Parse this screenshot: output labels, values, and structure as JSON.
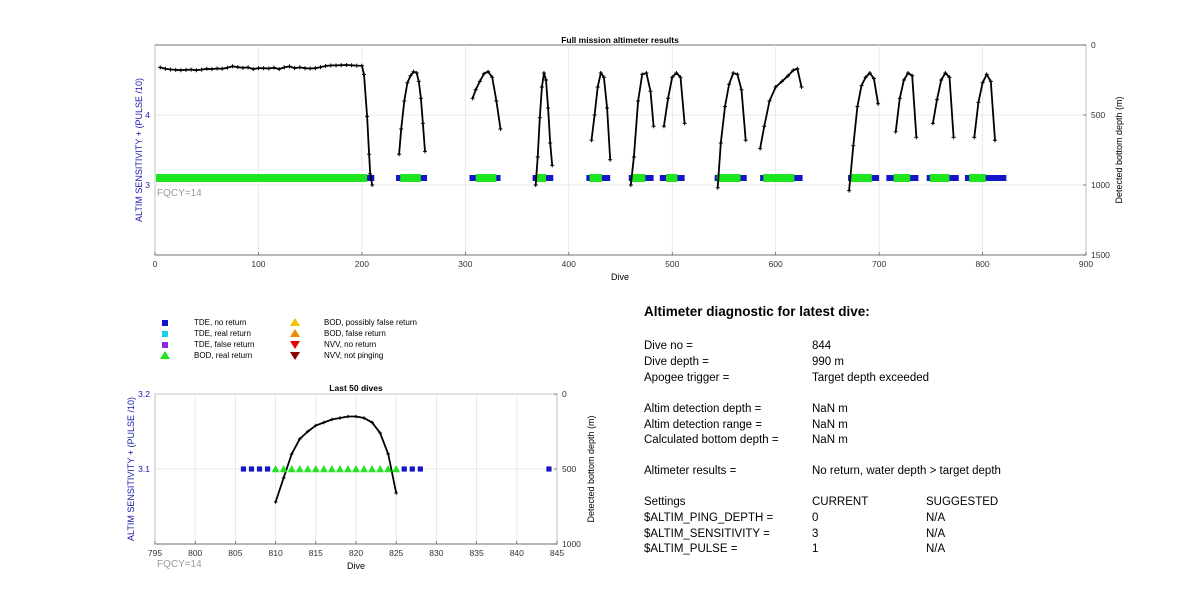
{
  "chart_data": [
    {
      "type": "scatter",
      "title": "Full mission altimeter results",
      "xlabel": "Dive",
      "ylabel": "ALTIM SENSITIVITY + (PULSE /10)",
      "ylabel_right": "Detected bottom depth (m)",
      "annotation": "FQCY=14",
      "xlim": [
        0,
        900
      ],
      "ylim": [
        2,
        5
      ],
      "ylim_right": [
        0,
        1500
      ],
      "right_axis_reversed": true,
      "grid": true,
      "xticks": [
        "0",
        "100",
        "200",
        "300",
        "400",
        "500",
        "600",
        "700",
        "800",
        "900"
      ],
      "yticks": [
        "3",
        "4"
      ],
      "yticks_right": [
        "0",
        "500",
        "1000",
        "1500"
      ],
      "tde_segments": [
        [
          1,
          212
        ],
        [
          233,
          263
        ],
        [
          304,
          334
        ],
        [
          365,
          385
        ],
        [
          417,
          440
        ],
        [
          458,
          482
        ],
        [
          488,
          512
        ],
        [
          541,
          572
        ],
        [
          585,
          626
        ],
        [
          670,
          700
        ],
        [
          707,
          738
        ],
        [
          746,
          777
        ],
        [
          783,
          823
        ]
      ],
      "bod_segments": [
        [
          1,
          205
        ],
        [
          237,
          257
        ],
        [
          310,
          330
        ],
        [
          368,
          378
        ],
        [
          420,
          432
        ],
        [
          460,
          474
        ],
        [
          494,
          505
        ],
        [
          543,
          566
        ],
        [
          588,
          618
        ],
        [
          673,
          693
        ],
        [
          714,
          730
        ],
        [
          749,
          768
        ],
        [
          787,
          803
        ]
      ],
      "sensitivity_value": 3.1,
      "bottom_depth_series": [
        {
          "x": [
            5,
            10,
            15,
            20,
            25,
            30,
            35,
            40,
            45,
            50,
            55,
            60,
            65,
            70,
            75,
            80,
            85,
            90,
            95,
            100,
            105,
            110,
            115,
            120,
            125,
            130,
            135,
            140,
            145,
            150,
            155,
            160,
            165,
            170,
            175,
            180,
            185,
            190,
            195,
            200,
            202,
            205,
            207,
            208,
            210
          ],
          "y": [
            160,
            170,
            175,
            178,
            180,
            178,
            176,
            180,
            176,
            170,
            172,
            168,
            170,
            162,
            152,
            158,
            163,
            160,
            172,
            165,
            166,
            168,
            162,
            172,
            160,
            153,
            165,
            160,
            166,
            168,
            166,
            158,
            150,
            146,
            146,
            144,
            143,
            145,
            147,
            148,
            210,
            510,
            780,
            920,
            1000
          ]
        },
        {
          "x": [
            236,
            238,
            241,
            244,
            247,
            250,
            253,
            255,
            257,
            259,
            261
          ],
          "y": [
            780,
            600,
            400,
            270,
            220,
            190,
            200,
            260,
            380,
            560,
            760
          ]
        },
        {
          "x": [
            307,
            310,
            314,
            318,
            322,
            326,
            330,
            334
          ],
          "y": [
            380,
            320,
            260,
            205,
            190,
            230,
            400,
            600
          ]
        },
        {
          "x": [
            368,
            370,
            372,
            374,
            376,
            378,
            380,
            382,
            384
          ],
          "y": [
            1000,
            800,
            520,
            300,
            200,
            250,
            450,
            700,
            860
          ]
        },
        {
          "x": [
            422,
            425,
            428,
            431,
            434,
            437,
            440
          ],
          "y": [
            680,
            500,
            300,
            200,
            230,
            450,
            820
          ]
        },
        {
          "x": [
            460,
            463,
            467,
            471,
            475,
            479,
            482
          ],
          "y": [
            1000,
            800,
            400,
            210,
            200,
            330,
            580
          ]
        },
        {
          "x": [
            492,
            496,
            500,
            504,
            508,
            512
          ],
          "y": [
            580,
            380,
            230,
            200,
            230,
            560
          ]
        },
        {
          "x": [
            544,
            547,
            551,
            555,
            559,
            563,
            567,
            571
          ],
          "y": [
            1020,
            700,
            440,
            280,
            200,
            210,
            320,
            680
          ]
        },
        {
          "x": [
            585,
            589,
            594,
            600,
            606,
            612,
            617,
            621,
            625
          ],
          "y": [
            740,
            580,
            400,
            300,
            260,
            220,
            180,
            170,
            300
          ]
        },
        {
          "x": [
            671,
            675,
            679,
            683,
            687,
            691,
            695,
            699
          ],
          "y": [
            1040,
            720,
            440,
            290,
            230,
            200,
            240,
            420
          ]
        },
        {
          "x": [
            716,
            720,
            724,
            728,
            732,
            736
          ],
          "y": [
            620,
            380,
            250,
            200,
            220,
            660
          ]
        },
        {
          "x": [
            752,
            756,
            760,
            764,
            768,
            772
          ],
          "y": [
            560,
            390,
            250,
            200,
            230,
            660
          ]
        },
        {
          "x": [
            792,
            796,
            800,
            804,
            808,
            812
          ],
          "y": [
            660,
            410,
            270,
            210,
            260,
            680
          ]
        }
      ]
    },
    {
      "type": "scatter",
      "title": "Last 50 dives",
      "xlabel": "Dive",
      "ylabel": "ALTIM SENSITIVITY + (PULSE /10)",
      "ylabel_right": "Detected bottom depth (m)",
      "annotation": "FQCY=14",
      "xlim": [
        795,
        845
      ],
      "ylim": [
        3,
        3.2
      ],
      "ylim_right": [
        0,
        1000
      ],
      "right_axis_reversed": true,
      "grid": true,
      "xticks": [
        "795",
        "800",
        "805",
        "810",
        "815",
        "820",
        "825",
        "830",
        "835",
        "840",
        "845"
      ],
      "yticks": [
        "3.1",
        "3.2"
      ],
      "yticks_right": [
        "0",
        "500",
        "1000"
      ],
      "tde_points": [
        {
          "x": 806,
          "y": 3.1
        },
        {
          "x": 807,
          "y": 3.1
        },
        {
          "x": 808,
          "y": 3.1
        },
        {
          "x": 809,
          "y": 3.1
        },
        {
          "x": 826,
          "y": 3.1
        },
        {
          "x": 827,
          "y": 3.1
        },
        {
          "x": 828,
          "y": 3.1
        },
        {
          "x": 844,
          "y": 3.1
        }
      ],
      "bod_points": [
        {
          "x": 810,
          "y": 3.1
        },
        {
          "x": 811,
          "y": 3.1
        },
        {
          "x": 812,
          "y": 3.1
        },
        {
          "x": 813,
          "y": 3.1
        },
        {
          "x": 814,
          "y": 3.1
        },
        {
          "x": 815,
          "y": 3.1
        },
        {
          "x": 816,
          "y": 3.1
        },
        {
          "x": 817,
          "y": 3.1
        },
        {
          "x": 818,
          "y": 3.1
        },
        {
          "x": 819,
          "y": 3.1
        },
        {
          "x": 820,
          "y": 3.1
        },
        {
          "x": 821,
          "y": 3.1
        },
        {
          "x": 822,
          "y": 3.1
        },
        {
          "x": 823,
          "y": 3.1
        },
        {
          "x": 824,
          "y": 3.1
        },
        {
          "x": 825,
          "y": 3.1
        }
      ],
      "bottom_depth": {
        "x": [
          810,
          811,
          812,
          813,
          814,
          815,
          816,
          817,
          818,
          819,
          820,
          821,
          822,
          823,
          824,
          825
        ],
        "y": [
          720,
          560,
          400,
          300,
          250,
          210,
          190,
          170,
          160,
          150,
          150,
          160,
          190,
          260,
          400,
          660
        ]
      }
    }
  ],
  "legend": {
    "items": [
      {
        "label": "TDE, no return",
        "marker": "square",
        "color": "#1414c8"
      },
      {
        "label": "TDE, real return",
        "marker": "square",
        "color": "#19d3e6"
      },
      {
        "label": "TDE, false return",
        "marker": "square",
        "color": "#8a2be2"
      },
      {
        "label": "BOD, real return",
        "marker": "triangle-up",
        "color": "#1ee61e"
      },
      {
        "label": "BOD, possibly false return",
        "marker": "triangle-up",
        "color": "#f5c400"
      },
      {
        "label": "BOD, false return",
        "marker": "triangle-up",
        "color": "#f08c00"
      },
      {
        "label": "NVV, no return",
        "marker": "triangle-down",
        "color": "#e60000"
      },
      {
        "label": "NVV, not pinging",
        "marker": "triangle-down",
        "color": "#8b0000"
      }
    ]
  },
  "diagnostic": {
    "title": "Altimeter diagnostic for latest dive:",
    "dive_no_label": "Dive no =",
    "dive_no": "844",
    "dive_depth_label": "Dive depth =",
    "dive_depth": "990 m",
    "apogee_label": "Apogee trigger =",
    "apogee": "Target depth exceeded",
    "altim_det_depth_label": "Altim detection depth =",
    "altim_det_depth": "NaN m",
    "altim_det_range_label": "Altim detection range =",
    "altim_det_range": "NaN m",
    "calc_bottom_label": "Calculated bottom depth =",
    "calc_bottom": "NaN m",
    "results_label": "Altimeter results =",
    "results": "No return, water depth > target depth",
    "settings_label": "Settings",
    "current_label": "CURRENT",
    "suggested_label": "SUGGESTED",
    "ping_depth_label": "$ALTIM_PING_DEPTH =",
    "ping_depth_current": "0",
    "ping_depth_suggested": "N/A",
    "sensitivity_label": "$ALTIM_SENSITIVITY =",
    "sensitivity_current": "3",
    "sensitivity_suggested": "N/A",
    "pulse_label": "$ALTIM_PULSE =",
    "pulse_current": "1",
    "pulse_suggested": "N/A"
  },
  "colors": {
    "tde": "#1414c8",
    "bod": "#1ee61e",
    "axis_blue": "#1a1aaa",
    "fqcy": "#999999",
    "depth_line": "#000000"
  }
}
